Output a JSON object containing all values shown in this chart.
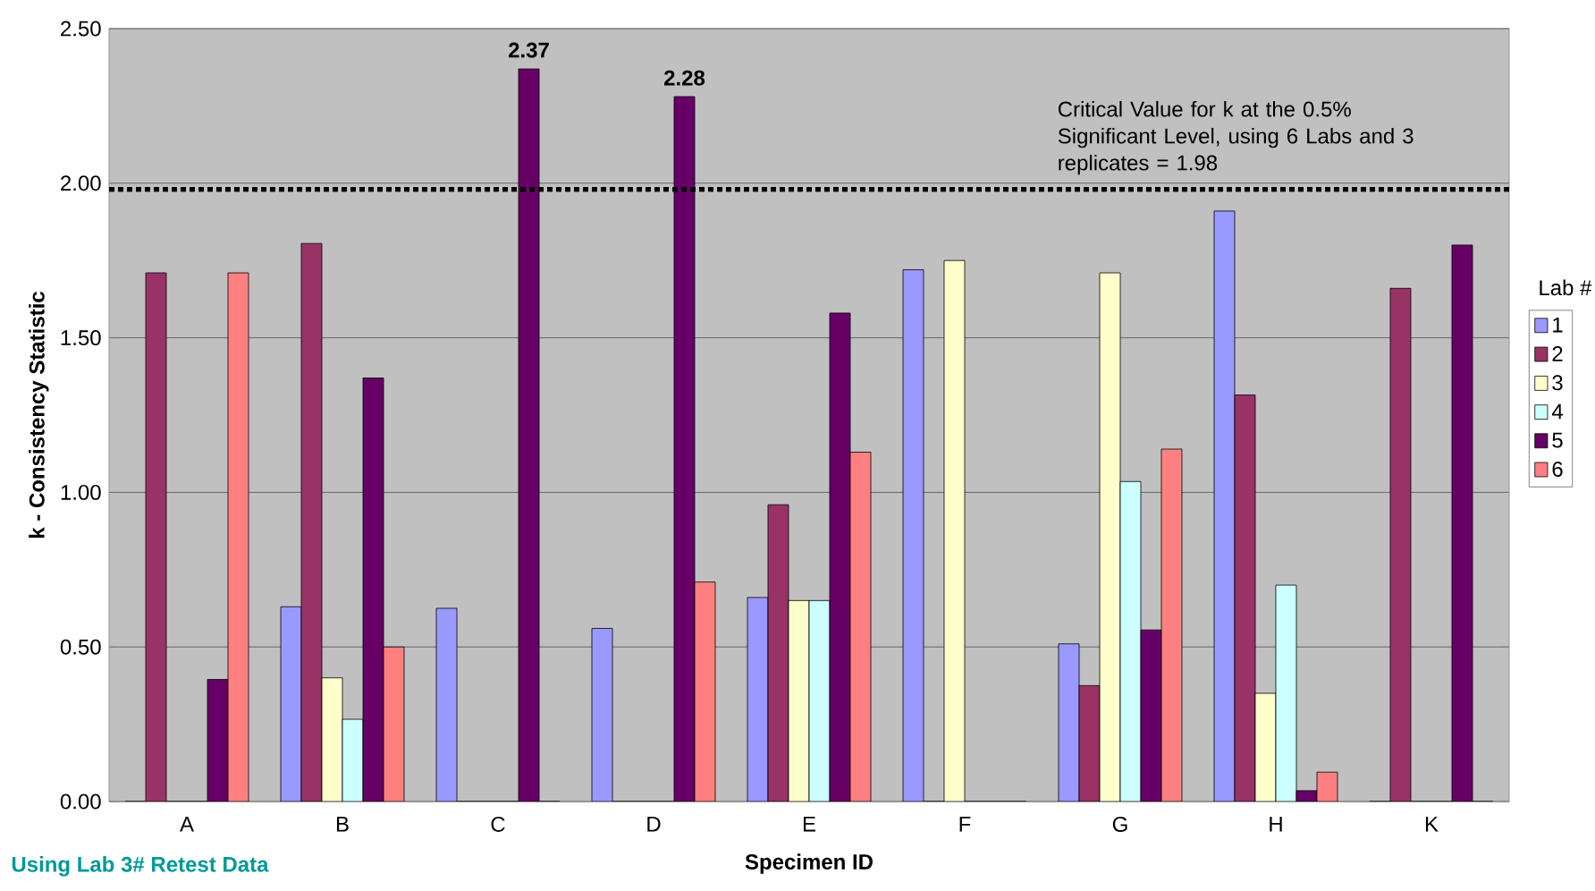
{
  "chart_data": {
    "type": "bar",
    "xlabel": "Specimen ID",
    "ylabel": "k - Consistency Statistic",
    "legend_title": "Lab #",
    "categories": [
      "A",
      "B",
      "C",
      "D",
      "E",
      "F",
      "G",
      "H",
      "K"
    ],
    "series": [
      {
        "name": "1",
        "color": "#9999ff",
        "values": [
          0,
          0.63,
          0.625,
          0.56,
          0.66,
          1.72,
          0.51,
          1.91,
          0
        ]
      },
      {
        "name": "2",
        "color": "#993366",
        "values": [
          1.71,
          1.805,
          0,
          0,
          0.96,
          0,
          0.375,
          1.315,
          1.66
        ]
      },
      {
        "name": "3",
        "color": "#ffffcc",
        "values": [
          0,
          0.4,
          0,
          0,
          0.65,
          1.75,
          1.71,
          0.35,
          0
        ]
      },
      {
        "name": "4",
        "color": "#ccffff",
        "values": [
          0,
          0.266,
          0,
          0,
          0.65,
          0,
          1.035,
          0.7,
          0
        ]
      },
      {
        "name": "5",
        "color": "#660066",
        "values": [
          0.395,
          1.37,
          2.37,
          2.28,
          1.58,
          0,
          0.555,
          0.035,
          1.8
        ],
        "value_labels": [
          null,
          null,
          "2.37",
          "2.28",
          null,
          null,
          null,
          null,
          null
        ]
      },
      {
        "name": "6",
        "color": "#ff8080",
        "values": [
          1.71,
          0.5,
          0,
          0.71,
          1.13,
          0,
          1.14,
          0.095,
          0
        ]
      }
    ],
    "ylim": [
      0,
      2.5
    ],
    "yticks": [
      {
        "value": 0,
        "label": "0.00"
      },
      {
        "value": 0.5,
        "label": "0.50"
      },
      {
        "value": 1,
        "label": "1.00"
      },
      {
        "value": 1.5,
        "label": "1.50"
      },
      {
        "value": 2,
        "label": "2.00"
      },
      {
        "value": 2.5,
        "label": "2.50"
      }
    ],
    "grid": "y",
    "legend": "right",
    "ref_lines": [
      {
        "axis": "y",
        "value": 1.98,
        "label": "Critical Value for k at the 0.5% Significant Level, using 6 Labs and 3 replicates = 1.98",
        "color": "#000000",
        "line_style": "dotted"
      }
    ],
    "annotations": [
      "Using Lab 3# Retest Data"
    ]
  }
}
